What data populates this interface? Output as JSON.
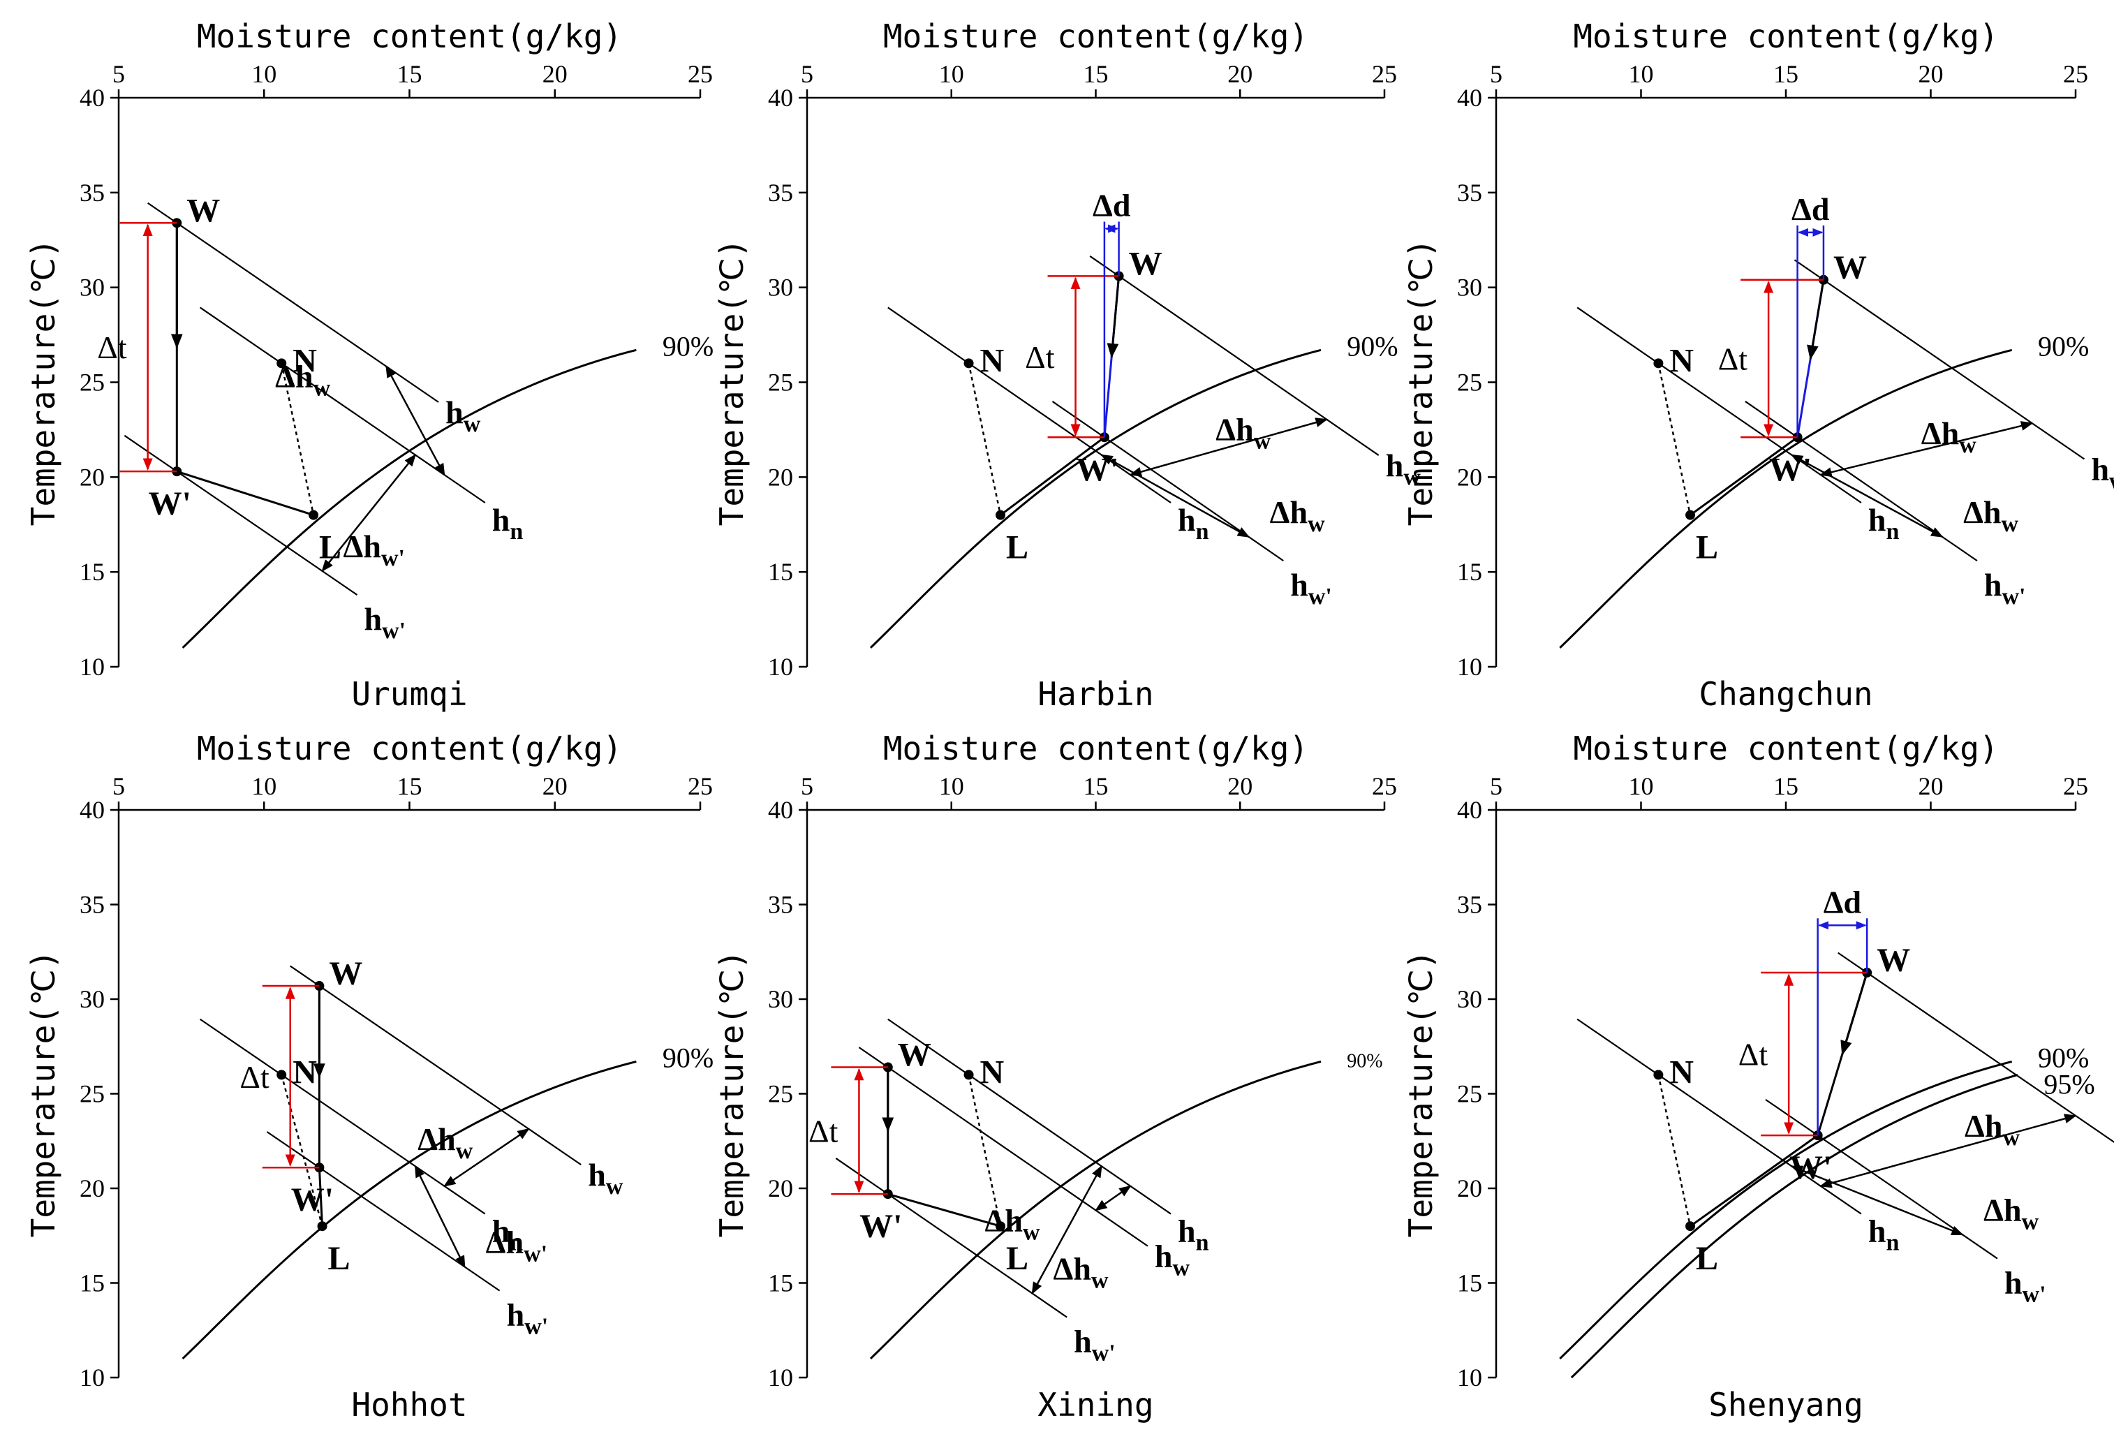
{
  "figure": {
    "xaxis_title": "Moisture content(g/kg)",
    "yaxis_title": "Temperature(℃)",
    "xticks": [
      5,
      10,
      15,
      20,
      25
    ],
    "yticks": [
      10,
      15,
      20,
      25,
      30,
      35,
      40
    ]
  },
  "chart_data": [
    {
      "type": "scatter",
      "title": "Urumqi",
      "xlabel": "Moisture content(g/kg)",
      "ylabel": "Temperature(℃)",
      "xlim": [
        5,
        25
      ],
      "ylim": [
        10,
        40
      ],
      "rh_curves": [
        {
          "label": "90%"
        }
      ],
      "points": [
        {
          "name": "W",
          "x": 7.0,
          "y": 33.4
        },
        {
          "name": "W'",
          "x": 7.0,
          "y": 20.3
        },
        {
          "name": "N",
          "x": 10.6,
          "y": 26.0
        },
        {
          "name": "L",
          "x": 11.7,
          "y": 18.0
        }
      ],
      "annotations": {
        "delta_t": "Δt",
        "delta_hw": "Δh",
        "delta_hw_prime": "Δh",
        "h_w": "h",
        "h_n": "h",
        "h_w_prime": "h"
      }
    },
    {
      "type": "scatter",
      "title": "Harbin",
      "xlabel": "Moisture content(g/kg)",
      "ylabel": "Temperature(℃)",
      "xlim": [
        5,
        25
      ],
      "ylim": [
        10,
        40
      ],
      "rh_curves": [
        {
          "label": "90%"
        }
      ],
      "points": [
        {
          "name": "W",
          "x": 15.8,
          "y": 30.6
        },
        {
          "name": "W'",
          "x": 15.3,
          "y": 22.1
        },
        {
          "name": "N",
          "x": 10.6,
          "y": 26.0
        },
        {
          "name": "L",
          "x": 11.7,
          "y": 18.0
        }
      ],
      "annotations": {
        "delta_t": "Δt",
        "delta_d": "Δd",
        "delta_hw": "Δh",
        "delta_hw_2": "Δh",
        "h_w": "h",
        "h_n": "h",
        "h_w_prime": "h"
      }
    },
    {
      "type": "scatter",
      "title": "Changchun",
      "xlabel": "Moisture content(g/kg)",
      "ylabel": "Temperature(℃)",
      "xlim": [
        5,
        25
      ],
      "ylim": [
        10,
        40
      ],
      "rh_curves": [
        {
          "label": "90%"
        }
      ],
      "points": [
        {
          "name": "W",
          "x": 16.3,
          "y": 30.4
        },
        {
          "name": "W'",
          "x": 15.4,
          "y": 22.1
        },
        {
          "name": "N",
          "x": 10.6,
          "y": 26.0
        },
        {
          "name": "L",
          "x": 11.7,
          "y": 18.0
        }
      ],
      "annotations": {
        "delta_t": "Δt",
        "delta_d": "Δd",
        "delta_hw": "Δh",
        "delta_hw_2": "Δh",
        "h_w": "h",
        "h_n": "h",
        "h_w_prime": "h"
      }
    },
    {
      "type": "scatter",
      "title": "Hohhot",
      "xlabel": "Moisture content(g/kg)",
      "ylabel": "Temperature(℃)",
      "xlim": [
        5,
        25
      ],
      "ylim": [
        10,
        40
      ],
      "rh_curves": [
        {
          "label": "90%"
        }
      ],
      "points": [
        {
          "name": "W",
          "x": 11.9,
          "y": 30.7
        },
        {
          "name": "W'",
          "x": 11.9,
          "y": 21.1
        },
        {
          "name": "N",
          "x": 10.6,
          "y": 26.0
        },
        {
          "name": "L",
          "x": 12.0,
          "y": 18.0
        }
      ],
      "annotations": {
        "delta_t": "Δt",
        "delta_hw": "Δh",
        "delta_hw_prime": "Δh",
        "h_w": "h",
        "h_n": "h",
        "h_w_prime": "h"
      }
    },
    {
      "type": "scatter",
      "title": "Xining",
      "xlabel": "Moisture content(g/kg)",
      "ylabel": "Temperature(℃)",
      "xlim": [
        5,
        25
      ],
      "ylim": [
        10,
        40
      ],
      "rh_curves": [
        {
          "label": "90%"
        }
      ],
      "points": [
        {
          "name": "W",
          "x": 7.8,
          "y": 26.4
        },
        {
          "name": "W'",
          "x": 7.8,
          "y": 19.7
        },
        {
          "name": "N",
          "x": 10.6,
          "y": 26.0
        },
        {
          "name": "L",
          "x": 11.7,
          "y": 18.0
        }
      ],
      "annotations": {
        "delta_t": "Δt",
        "delta_hw": "Δh",
        "delta_hw_2": "Δh",
        "h_w": "h",
        "h_n": "h",
        "h_w_prime": "h"
      }
    },
    {
      "type": "scatter",
      "title": "Shenyang",
      "xlabel": "Moisture content(g/kg)",
      "ylabel": "Temperature(℃)",
      "xlim": [
        5,
        25
      ],
      "ylim": [
        10,
        40
      ],
      "rh_curves": [
        {
          "label": "90%"
        },
        {
          "label": "95%"
        }
      ],
      "points": [
        {
          "name": "W",
          "x": 17.8,
          "y": 31.4
        },
        {
          "name": "W'",
          "x": 16.1,
          "y": 22.8
        },
        {
          "name": "N",
          "x": 10.6,
          "y": 26.0
        },
        {
          "name": "L",
          "x": 11.7,
          "y": 18.0
        }
      ],
      "annotations": {
        "delta_t": "Δt",
        "delta_d": "Δd",
        "delta_hw": "Δh",
        "delta_hw_2": "Δh",
        "h_w": "h",
        "h_n": "h",
        "h_w_prime": "h"
      }
    }
  ]
}
